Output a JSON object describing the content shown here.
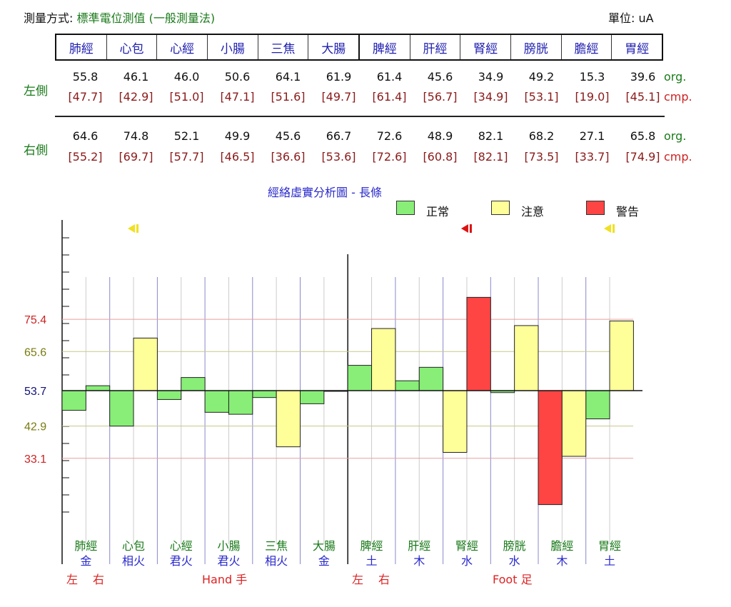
{
  "header": {
    "method_label": "測量方式:",
    "method_value": "標準電位測值 (一般測量法)",
    "unit": "單位: uA"
  },
  "channels": [
    "肺經",
    "心包",
    "心經",
    "小腸",
    "三焦",
    "大腸",
    "脾經",
    "肝經",
    "腎經",
    "膀胱",
    "膽經",
    "胃經"
  ],
  "rows": {
    "left": {
      "label": "左側",
      "org": [
        "55.8",
        "46.1",
        "46.0",
        "50.6",
        "64.1",
        "61.9",
        "61.4",
        "45.6",
        "34.9",
        "49.2",
        "15.3",
        "39.6"
      ],
      "cmp": [
        "[47.7]",
        "[42.9]",
        "[51.0]",
        "[47.1]",
        "[51.6]",
        "[49.7]",
        "[61.4]",
        "[56.7]",
        "[34.9]",
        "[53.1]",
        "[19.0]",
        "[45.1]"
      ]
    },
    "right": {
      "label": "右側",
      "org": [
        "64.6",
        "74.8",
        "52.1",
        "49.9",
        "45.6",
        "66.7",
        "72.6",
        "48.9",
        "82.1",
        "68.2",
        "27.1",
        "65.8"
      ],
      "cmp": [
        "[55.2]",
        "[69.7]",
        "[57.7]",
        "[46.5]",
        "[36.6]",
        "[53.6]",
        "[72.6]",
        "[60.8]",
        "[82.1]",
        "[73.5]",
        "[33.7]",
        "[74.9]"
      ]
    },
    "tag_org": "org.",
    "tag_cmp": "cmp."
  },
  "chart_data": {
    "type": "bar",
    "title": "經絡虛實分析圖 - 長條",
    "legend": [
      {
        "label": "正常",
        "color": "#88ee77"
      },
      {
        "label": "注意",
        "color": "#ffff99"
      },
      {
        "label": "警告",
        "color": "#ff4444"
      }
    ],
    "baseline": 53.7,
    "reference_lines": [
      {
        "value": 75.4,
        "label": "75.4",
        "color": "#cc2222",
        "line": "#e8a0a0"
      },
      {
        "value": 65.6,
        "label": "65.6",
        "color": "#7a7a10",
        "line": "#c8c88a"
      },
      {
        "value": 53.7,
        "label": "53.7",
        "color": "#111177",
        "line": "#111111"
      },
      {
        "value": 42.9,
        "label": "42.9",
        "color": "#7a7a10",
        "line": "#c8c88a"
      },
      {
        "value": 33.1,
        "label": "33.1",
        "color": "#cc2222",
        "line": "#e8a0a0"
      }
    ],
    "categories": [
      "肺經",
      "心包",
      "心經",
      "小腸",
      "三焦",
      "大腸",
      "脾經",
      "肝經",
      "腎經",
      "膀胱",
      "膽經",
      "胃經"
    ],
    "elements": [
      "金",
      "相火",
      "君火",
      "君火",
      "相火",
      "金",
      "土",
      "木",
      "水",
      "水",
      "木",
      "土"
    ],
    "series": [
      {
        "name": "左",
        "values": [
          47.7,
          42.9,
          51.0,
          47.1,
          51.6,
          49.7,
          61.4,
          56.7,
          34.9,
          53.1,
          19.0,
          45.1
        ],
        "status": [
          "normal",
          "normal",
          "normal",
          "normal",
          "normal",
          "normal",
          "normal",
          "normal",
          "caution",
          "normal",
          "warning",
          "normal"
        ]
      },
      {
        "name": "右",
        "values": [
          55.2,
          69.7,
          57.7,
          46.5,
          36.6,
          53.6,
          72.6,
          60.8,
          82.1,
          73.5,
          33.7,
          74.9
        ],
        "status": [
          "normal",
          "caution",
          "normal",
          "normal",
          "caution",
          "normal",
          "caution",
          "normal",
          "warning",
          "caution",
          "caution",
          "caution"
        ]
      }
    ],
    "markers": [
      {
        "channel": 1,
        "color": "#f0e020"
      },
      {
        "channel": 8,
        "color": "#dd1111"
      },
      {
        "channel": 11,
        "color": "#f0e020"
      }
    ],
    "bottom_labels": {
      "left": "左",
      "right": "右",
      "hand": "Hand 手",
      "foot": "Foot 足"
    },
    "status_colors": {
      "normal": "#88ee77",
      "caution": "#ffff99",
      "warning": "#ff4444"
    }
  }
}
